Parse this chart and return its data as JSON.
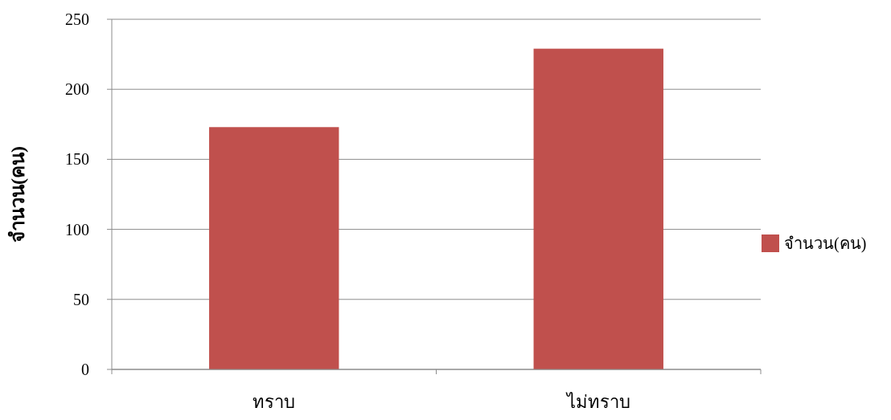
{
  "chart_data": {
    "type": "bar",
    "ylabel": "จำนวน(คน)",
    "categories": [
      "ทราบ",
      "ไม่ทราบ"
    ],
    "series": [
      {
        "name": "จำนวน(คน)",
        "color": "#c0504d",
        "values": [
          173,
          229
        ]
      }
    ],
    "ylim": [
      0,
      250
    ],
    "yticks": [
      0,
      50,
      100,
      150,
      200,
      250
    ],
    "grid": "y",
    "legend": "right"
  }
}
